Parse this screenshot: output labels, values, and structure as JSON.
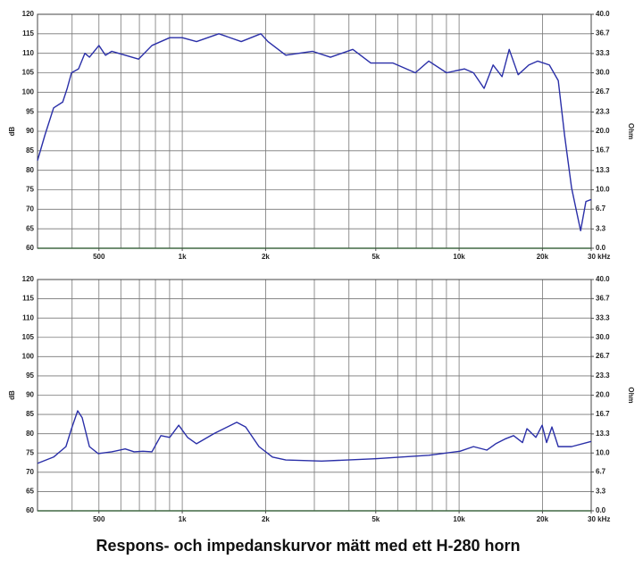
{
  "chart_data": [
    {
      "type": "line",
      "xscale": "log",
      "xlim": [
        300,
        30000
      ],
      "xticks": [
        500,
        {
          "value": 1000,
          "label": "1k"
        },
        {
          "value": 2000,
          "label": "2k"
        },
        {
          "value": 5000,
          "label": "5k"
        },
        {
          "value": 10000,
          "label": "10k"
        },
        {
          "value": 20000,
          "label": "20k"
        },
        {
          "value": 30000,
          "label": "30 kHz"
        }
      ],
      "xgrid": [
        400,
        500,
        600,
        700,
        800,
        900,
        1000,
        2000,
        3000,
        4000,
        5000,
        6000,
        7000,
        8000,
        9000,
        10000,
        20000
      ],
      "ylabel": "dB",
      "ylim": [
        60,
        120
      ],
      "yticks": [
        60,
        65,
        70,
        75,
        80,
        85,
        90,
        95,
        100,
        105,
        110,
        115,
        120
      ],
      "y2label": "Ohm",
      "y2lim": [
        0,
        40
      ],
      "y2ticks": [
        {
          "value": 0,
          "label": "0.0"
        },
        3.3,
        6.7,
        {
          "value": 10,
          "label": "10.0"
        },
        13.3,
        16.7,
        {
          "value": 20,
          "label": "20.0"
        },
        23.3,
        26.7,
        {
          "value": 30,
          "label": "30.0"
        },
        33.3,
        36.7,
        {
          "value": 40,
          "label": "40.0"
        }
      ],
      "grid": true,
      "color": "#2a2fa8",
      "axis": "y",
      "x": [
        300,
        319,
        343,
        370,
        384,
        398,
        422,
        445,
        462,
        500,
        528,
        556,
        622,
        695,
        777,
        901,
        1000,
        1126,
        1356,
        1633,
        1922,
        2040,
        2366,
        2957,
        3430,
        4130,
        4797,
        5770,
        6950,
        7770,
        9010,
        10450,
        11270,
        12310,
        13270,
        14290,
        15170,
        16340,
        17860,
        19230,
        21180,
        22810,
        24040,
        25480,
        27470,
        28710,
        30000
      ],
      "values": [
        82.5,
        89,
        96,
        97.5,
        101,
        105,
        106,
        110,
        109,
        112,
        109.5,
        110.5,
        109.5,
        108.5,
        112,
        114,
        114,
        113,
        115,
        113,
        115,
        113,
        109.5,
        110.5,
        109,
        111,
        107.5,
        107.5,
        105,
        108,
        105,
        106,
        105,
        101,
        107,
        104,
        111,
        104.5,
        107,
        108,
        107,
        103,
        89,
        75.5,
        64.5,
        72,
        72.5
      ]
    },
    {
      "type": "line",
      "xscale": "log",
      "xlim": [
        300,
        30000
      ],
      "xticks": [
        500,
        {
          "value": 1000,
          "label": "1k"
        },
        {
          "value": 2000,
          "label": "2k"
        },
        {
          "value": 5000,
          "label": "5k"
        },
        {
          "value": 10000,
          "label": "10k"
        },
        {
          "value": 20000,
          "label": "20k"
        },
        {
          "value": 30000,
          "label": "30 kHz"
        }
      ],
      "xgrid": [
        400,
        500,
        600,
        700,
        800,
        900,
        1000,
        2000,
        3000,
        4000,
        5000,
        6000,
        7000,
        8000,
        9000,
        10000,
        20000
      ],
      "ylabel": "dB",
      "ylim": [
        60,
        120
      ],
      "yticks": [
        60,
        65,
        70,
        75,
        80,
        85,
        90,
        95,
        100,
        105,
        110,
        115,
        120
      ],
      "y2label": "Ohm",
      "y2lim": [
        0,
        40
      ],
      "y2ticks": [
        {
          "value": 0,
          "label": "0.0"
        },
        3.3,
        6.7,
        {
          "value": 10,
          "label": "10.0"
        },
        13.3,
        16.7,
        {
          "value": 20,
          "label": "20.0"
        },
        23.3,
        26.7,
        {
          "value": 30,
          "label": "30.0"
        },
        33.3,
        36.7,
        {
          "value": 40,
          "label": "40.0"
        }
      ],
      "grid": true,
      "color": "#2a2fa8",
      "axis": "y2",
      "x": [
        300,
        343,
        380,
        398,
        419,
        435,
        462,
        497,
        556,
        622,
        670,
        721,
        777,
        837,
        901,
        971,
        1045,
        1126,
        1307,
        1573,
        1694,
        1893,
        2117,
        2366,
        3186,
        4977,
        7770,
        10070,
        11270,
        12590,
        13560,
        14620,
        15730,
        16940,
        17580,
        18930,
        19950,
        20700,
        21640,
        22810,
        25480,
        30000
      ],
      "values": [
        8.2,
        9.3,
        11.1,
        14.2,
        17.3,
        16.1,
        11.1,
        9.9,
        10.2,
        10.7,
        10.2,
        10.3,
        10.2,
        13,
        12.7,
        14.8,
        12.7,
        11.6,
        13.4,
        15.3,
        14.5,
        11.1,
        9.3,
        8.8,
        8.6,
        9,
        9.6,
        10.3,
        11.1,
        10.5,
        11.6,
        12.4,
        13,
        11.8,
        14.2,
        12.7,
        14.8,
        11.8,
        14.5,
        11.1,
        11.1,
        12
      ]
    }
  ],
  "caption": "Respons- och impedanskurvor mätt med ett H-280 horn"
}
